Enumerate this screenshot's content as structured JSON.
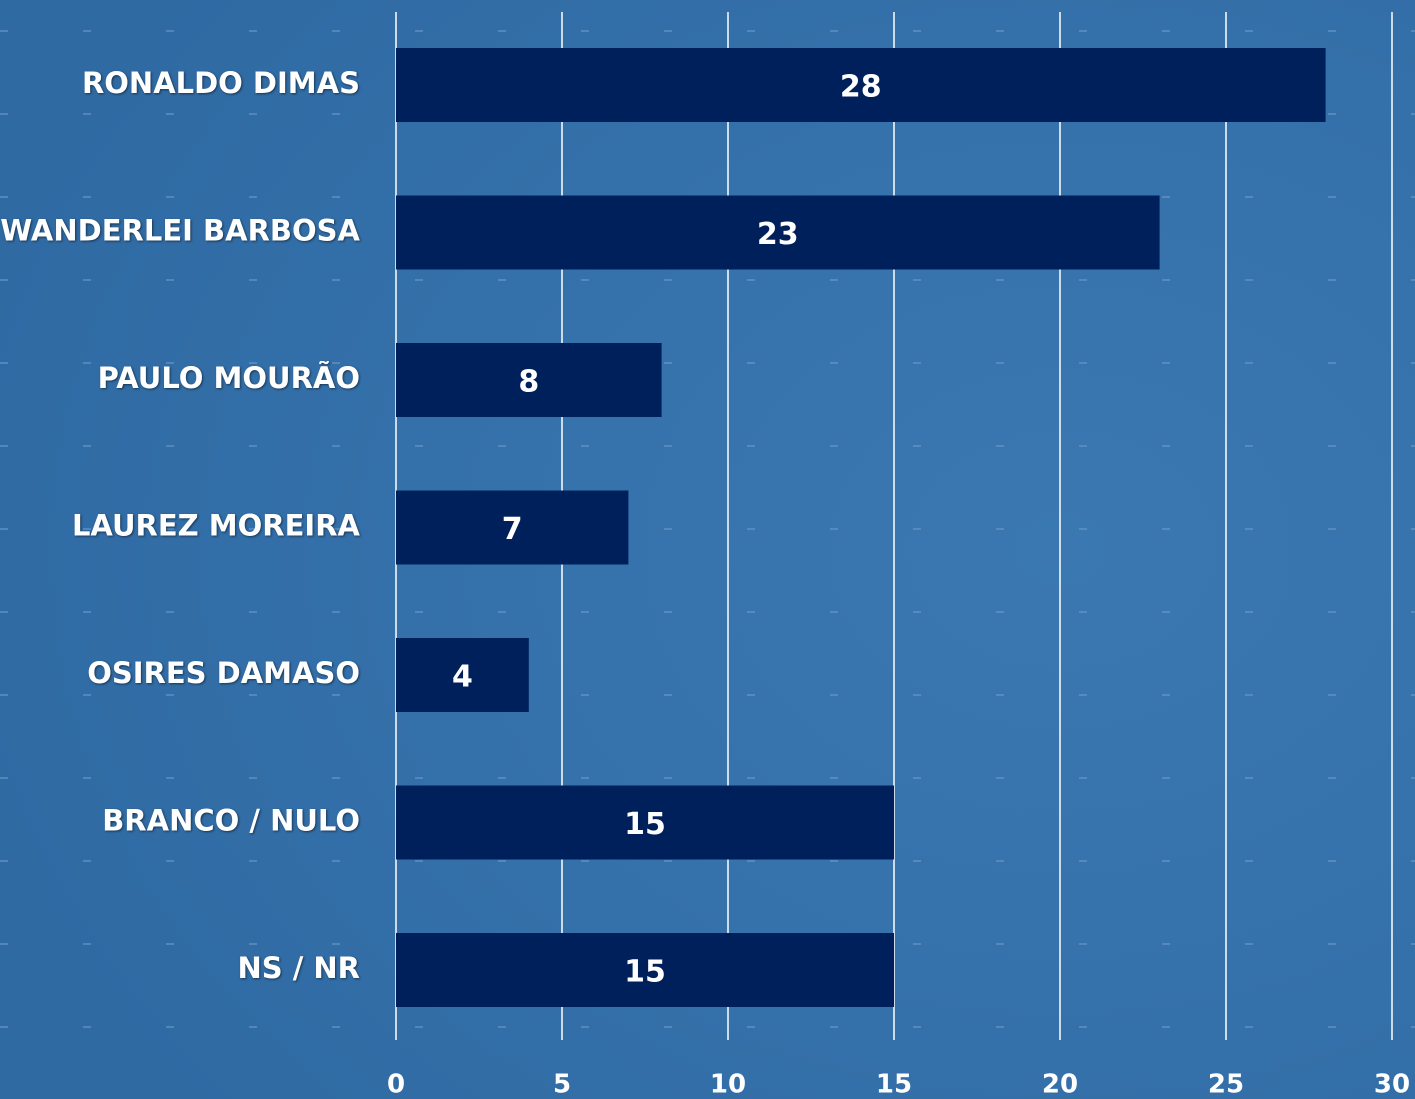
{
  "chart_data": {
    "type": "bar",
    "orientation": "horizontal",
    "categories": [
      "RONALDO DIMAS",
      "WANDERLEI BARBOSA",
      "PAULO MOURÃO",
      "LAUREZ MOREIRA",
      "OSIRES DAMASO",
      "BRANCO / NULO",
      "NS / NR"
    ],
    "values": [
      28,
      23,
      8,
      7,
      4,
      15,
      15
    ],
    "color": "#00205b",
    "xlim": [
      0,
      30
    ],
    "xticks": [
      0,
      5,
      10,
      15,
      20,
      25,
      30
    ],
    "grid": true
  }
}
